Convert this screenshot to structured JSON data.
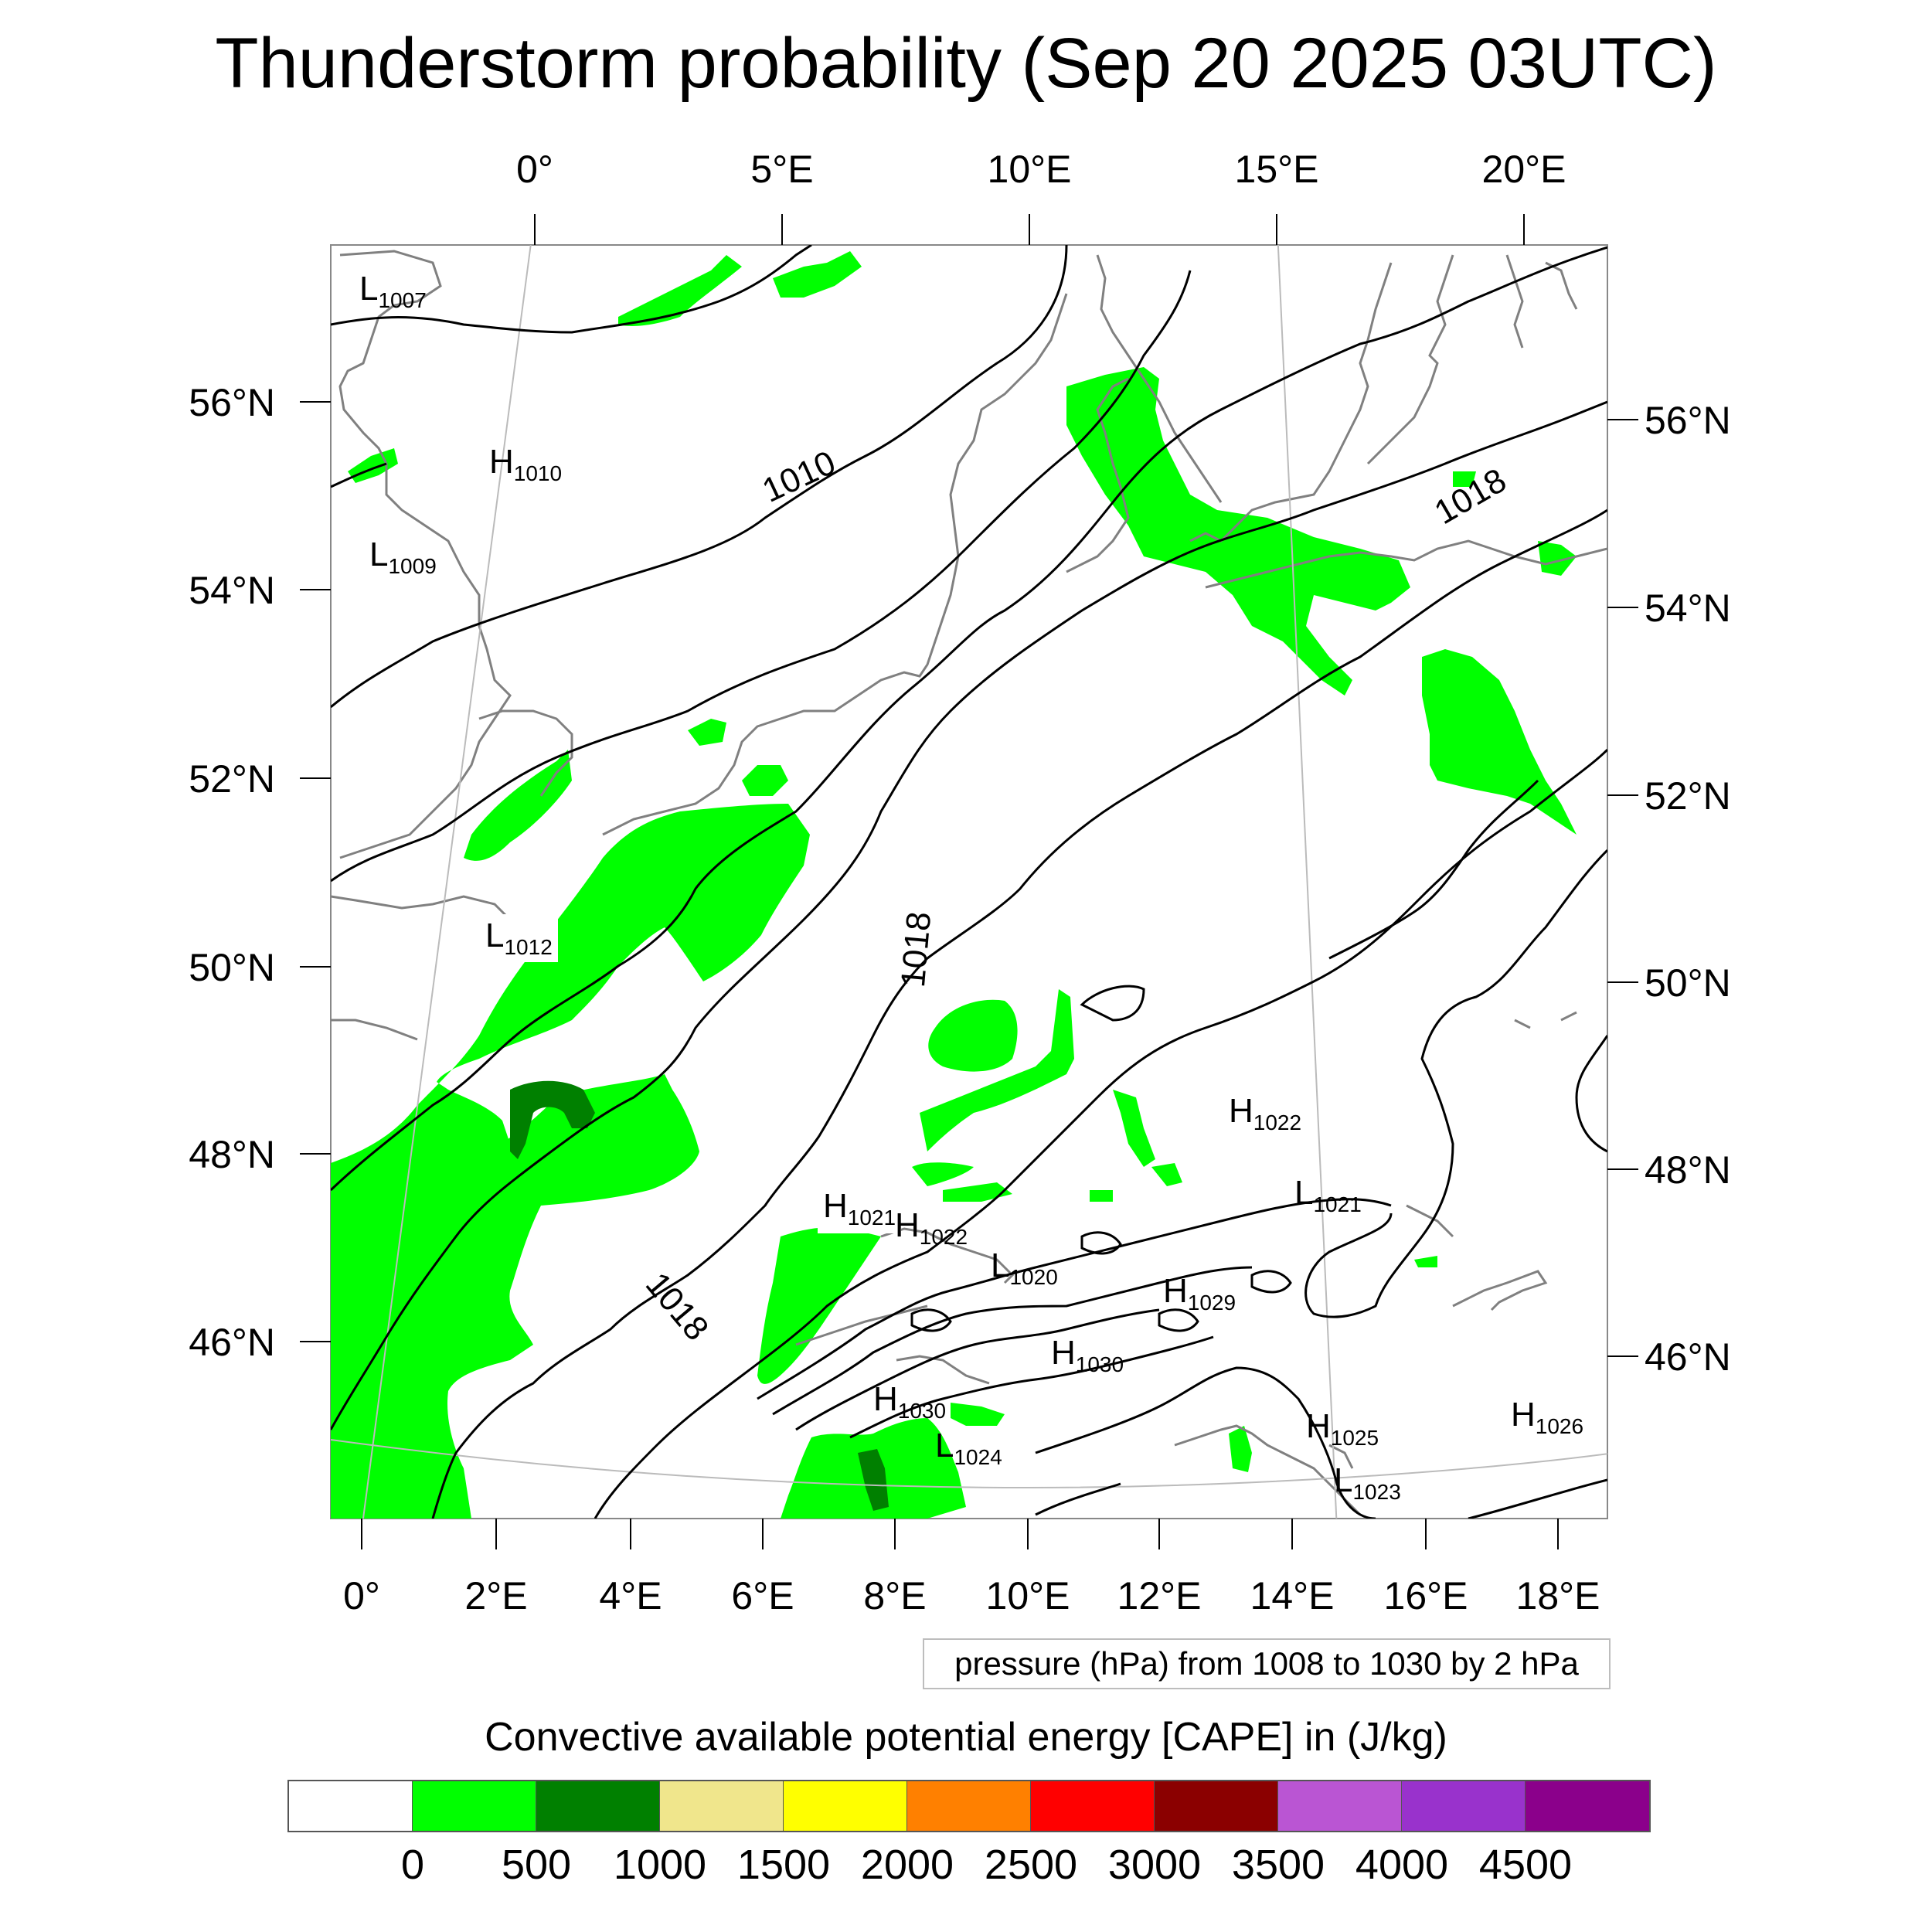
{
  "title": "Thunderstorm probability (Sep 20 2025 03UTC)",
  "top_lon_labels": [
    "0°",
    "5°E",
    "10°E",
    "15°E",
    "20°E"
  ],
  "bottom_lon_labels": [
    "0°",
    "2°E",
    "4°E",
    "6°E",
    "8°E",
    "10°E",
    "12°E",
    "14°E",
    "16°E",
    "18°E"
  ],
  "left_lat_labels": [
    "56°N",
    "54°N",
    "52°N",
    "50°N",
    "48°N",
    "46°N"
  ],
  "right_lat_labels": [
    "56°N",
    "54°N",
    "52°N",
    "50°N",
    "48°N",
    "46°N"
  ],
  "isobar_labels": [
    "1010",
    "1018",
    "1018",
    "1018"
  ],
  "pressure_centers": [
    {
      "type": "L",
      "value": "1007"
    },
    {
      "type": "H",
      "value": "1010"
    },
    {
      "type": "L",
      "value": "1009"
    },
    {
      "type": "L",
      "value": "1012"
    },
    {
      "type": "H",
      "value": "1022"
    },
    {
      "type": "H",
      "value": "1021"
    },
    {
      "type": "H",
      "value": "1022"
    },
    {
      "type": "L",
      "value": "1021"
    },
    {
      "type": "L",
      "value": "1020"
    },
    {
      "type": "H",
      "value": "1029"
    },
    {
      "type": "H",
      "value": "1030"
    },
    {
      "type": "H",
      "value": "1030"
    },
    {
      "type": "L",
      "value": "1024"
    },
    {
      "type": "H",
      "value": "1025"
    },
    {
      "type": "H",
      "value": "1026"
    },
    {
      "type": "L",
      "value": "1023"
    }
  ],
  "contour_info": "pressure (hPa) from 1008 to 1030 by 2 hPa",
  "colorbar": {
    "title": "Convective available potential energy [CAPE] in (J/kg)",
    "colors": [
      "#ffffff",
      "#00ff00",
      "#008000",
      "#f0e68c",
      "#ffff00",
      "#ff8000",
      "#ff0000",
      "#8b0000",
      "#ba55d3",
      "#9932cc",
      "#8b008b"
    ],
    "labels": [
      "0",
      "500",
      "1000",
      "1500",
      "2000",
      "2500",
      "3000",
      "3500",
      "4000",
      "4500"
    ]
  },
  "colors": {
    "land_outline": "#808080",
    "isobar": "#000000",
    "cape_low": "#00ff00",
    "cape_mid": "#008000"
  }
}
